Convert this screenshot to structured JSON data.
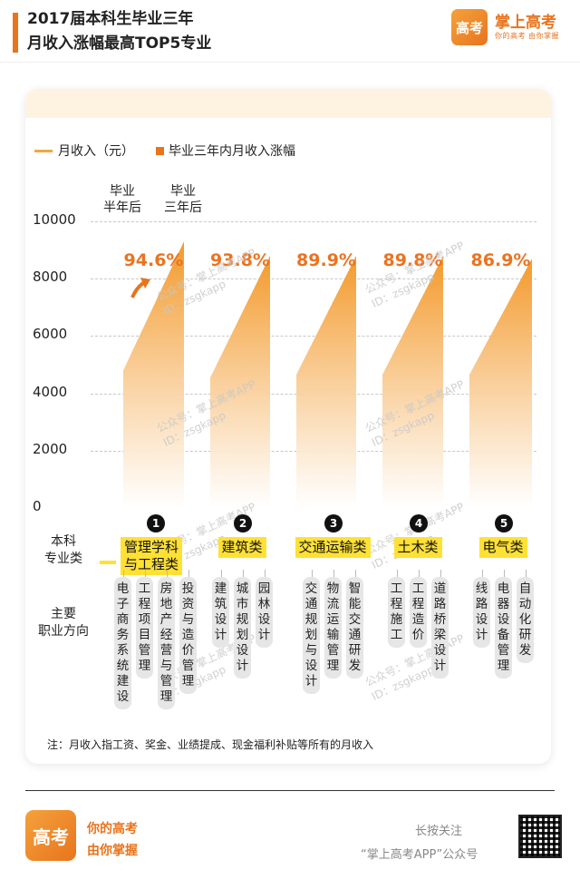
{
  "header": {
    "title_line1": "2017届本科生毕业三年",
    "title_line2": "月收入涨幅最高TOP5专业",
    "logo_text": "高考",
    "logo_name": "掌上高考",
    "logo_slogan": "你的高考 由你掌握"
  },
  "legend": {
    "line_label": "月收入（元）",
    "bar_label": "毕业三年内月收入涨幅"
  },
  "annotations": {
    "half_year_l1": "毕业",
    "half_year_l2": "半年后",
    "three_year_l1": "毕业",
    "three_year_l2": "三年后"
  },
  "chart_data": {
    "type": "area",
    "title": "2017届本科生毕业三年月收入涨幅最高TOP5专业",
    "ylim": [
      0,
      10000
    ],
    "yticks": [
      "10000",
      "8000",
      "6000",
      "4000",
      "2000",
      "0"
    ],
    "categories": [
      "管理学科与工程类",
      "建筑类",
      "交通运输类",
      "土木类",
      "电气类"
    ],
    "series": [
      {
        "name": "月收入（元）",
        "start_values": [
          4800,
          4550,
          4650,
          4650,
          4650
        ],
        "end_values": [
          9300,
          8800,
          8800,
          8800,
          8700
        ]
      },
      {
        "name": "毕业三年内月收入涨幅",
        "values": [
          "94.6%",
          "93.8%",
          "89.9%",
          "89.8%",
          "86.9%"
        ]
      }
    ],
    "colors": {
      "line": "#f4a83c",
      "bar": "#e8741e",
      "gradient_top": "#f39a2c",
      "gradient_bottom": "#ffffff"
    }
  },
  "category_row": {
    "side_label": "本科\n专业类",
    "items": [
      {
        "num": "1",
        "name_l1": "管理学科",
        "name_l2": "与工程类"
      },
      {
        "num": "2",
        "name_l1": "建筑类",
        "name_l2": ""
      },
      {
        "num": "3",
        "name_l1": "交通运输类",
        "name_l2": ""
      },
      {
        "num": "4",
        "name_l1": "土木类",
        "name_l2": ""
      },
      {
        "num": "5",
        "name_l1": "电气类",
        "name_l2": ""
      }
    ]
  },
  "jobs": {
    "side_label": "主要\n职业方向",
    "groups": [
      [
        "电子商务系统建设",
        "工程项目管理",
        "房地产经营与管理",
        "投资与造价管理"
      ],
      [
        "建筑设计",
        "城市规划设计",
        "园林设计"
      ],
      [
        "交通规划与设计",
        "物流运输管理",
        "智能交通研发"
      ],
      [
        "工程施工",
        "工程造价",
        "道路桥梁设计"
      ],
      [
        "线路设计",
        "电器设备管理",
        "自动化研发"
      ]
    ]
  },
  "watermark": {
    "line1": "公众号：掌上高考APP",
    "line2": "ID：zsgkapp"
  },
  "note": "注：月收入指工资、奖金、业绩提成、现金福利补贴等所有的月收入",
  "footer": {
    "slogan_l1": "你的高考",
    "slogan_l2": "由你掌握",
    "follow": "长按关注",
    "account": "“掌上高考APP”公众号"
  }
}
